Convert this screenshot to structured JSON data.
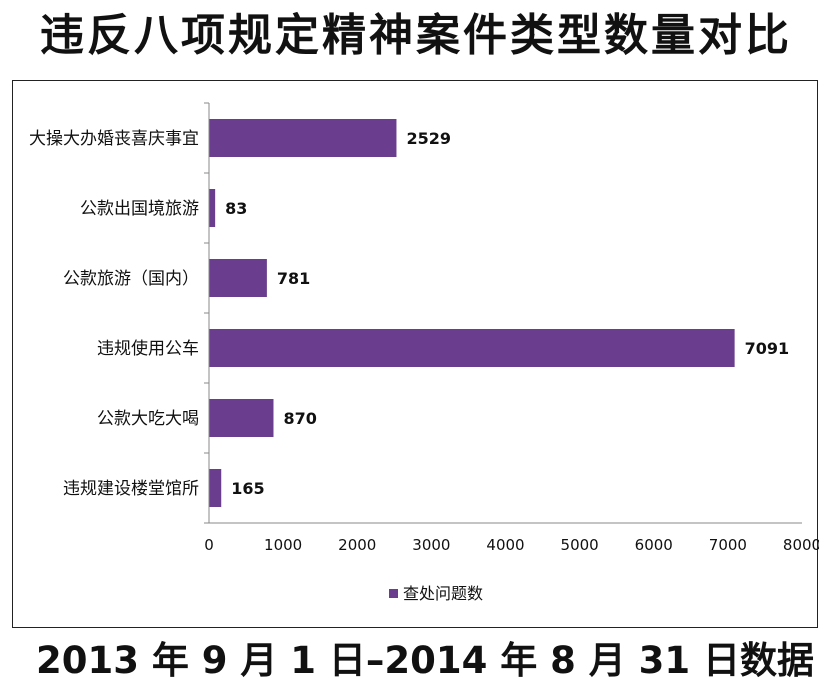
{
  "header": {
    "title": "违反八项规定精神案件类型数量对比"
  },
  "footer": {
    "note": "2013 年 9 月 1 日–2014 年 8 月 31 日数据"
  },
  "colors": {
    "bar": "#6b3d8e",
    "axis": "#888888",
    "frame": "#222222"
  },
  "chart_data": {
    "type": "bar",
    "orientation": "horizontal",
    "categories": [
      "大操大办婚丧喜庆事宜",
      "公款出国境旅游",
      "公款旅游（国内）",
      "违规使用公车",
      "公款大吃大喝",
      "违规建设楼堂馆所"
    ],
    "series": [
      {
        "name": "查处问题数",
        "values": [
          2529,
          83,
          781,
          7091,
          870,
          165
        ]
      }
    ],
    "data_labels": [
      "2529",
      "83",
      "781",
      "7091",
      "870",
      "165"
    ],
    "x_ticks": [
      "0",
      "1000",
      "2000",
      "3000",
      "4000",
      "5000",
      "6000",
      "7000",
      "8000"
    ],
    "xlim": [
      0,
      8000
    ],
    "grid": false,
    "legend_position": "bottom"
  }
}
